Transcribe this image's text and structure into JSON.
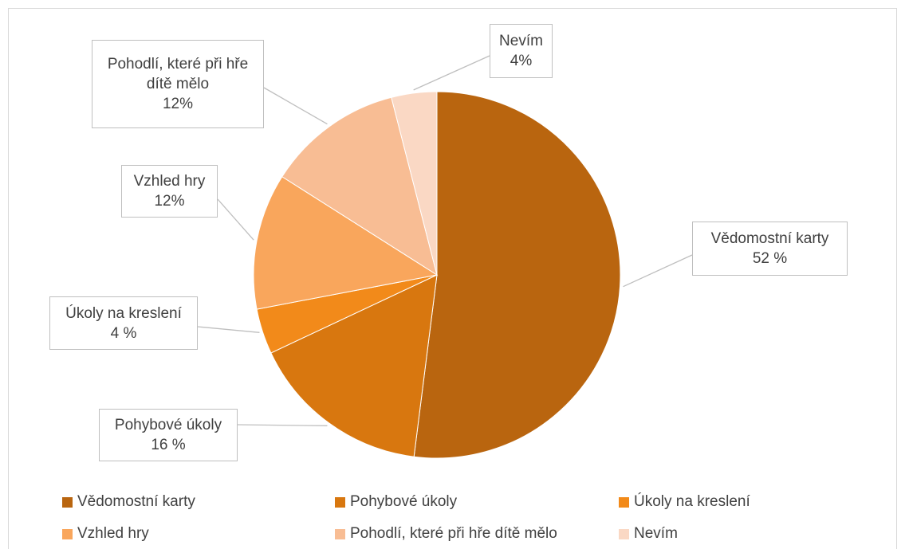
{
  "chart_data": {
    "type": "pie",
    "categories": [
      "Vědomostní karty",
      "Pohybové úkoly",
      "Úkoly na kreslení",
      "Vzhled hry",
      "Pohodlí, které při hře dítě mělo",
      "Nevím"
    ],
    "values": [
      52,
      16,
      4,
      12,
      12,
      4
    ],
    "value_labels": [
      "52 %",
      "16 %",
      "4 %",
      "12%",
      "12%",
      "4%"
    ],
    "colors": [
      "#b9650f",
      "#d8770f",
      "#f28a1a",
      "#f9a65c",
      "#f8bd94",
      "#fad8c4"
    ],
    "legend": "bottom"
  }
}
